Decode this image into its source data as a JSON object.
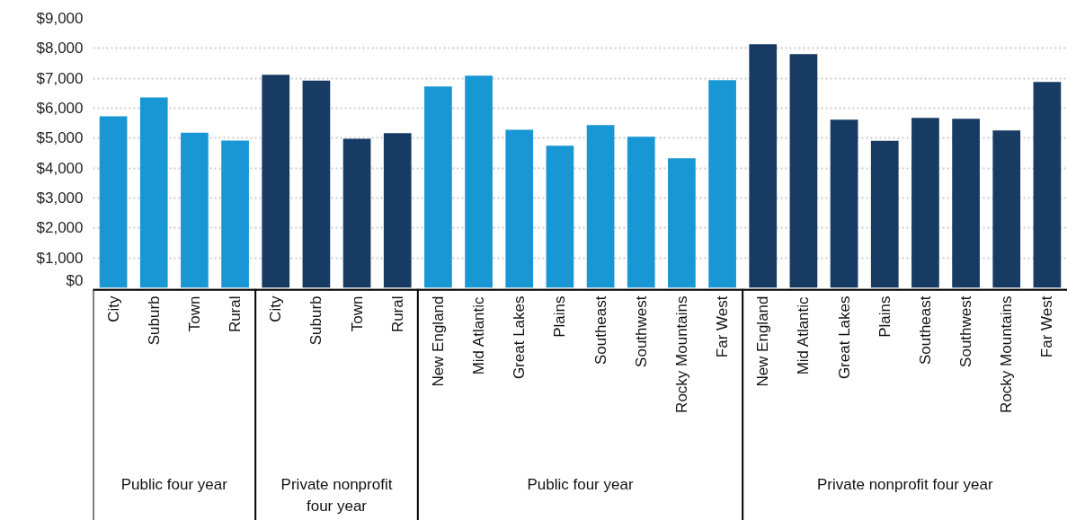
{
  "chart_data": {
    "type": "bar",
    "categories": [
      "City",
      "Suburb",
      "Town",
      "Rural",
      "City",
      "Suburb",
      "Town",
      "Rural",
      "New England",
      "Mid Atlantic",
      "Great Lakes",
      "Plains",
      "Southeast",
      "Southwest",
      "Rocky Mountains",
      "Far West",
      "New England",
      "Mid Atlantic",
      "Great Lakes",
      "Plains",
      "Southeast",
      "Southwest",
      "Rocky Mountains",
      "Far West"
    ],
    "values": [
      5730,
      6360,
      5180,
      4920,
      7120,
      6920,
      4980,
      5170,
      6730,
      7090,
      5280,
      4750,
      5440,
      5050,
      4330,
      6940,
      8140,
      7810,
      5620,
      4910,
      5680,
      5650,
      5260,
      6880
    ],
    "colors": [
      "#1997d4",
      "#1997d4",
      "#1997d4",
      "#1997d4",
      "#173b63",
      "#173b63",
      "#173b63",
      "#173b63",
      "#1997d4",
      "#1997d4",
      "#1997d4",
      "#1997d4",
      "#1997d4",
      "#1997d4",
      "#1997d4",
      "#1997d4",
      "#173b63",
      "#173b63",
      "#173b63",
      "#173b63",
      "#173b63",
      "#173b63",
      "#173b63",
      "#173b63"
    ],
    "annotations": [
      "Public four year",
      "Private nonprofit four year",
      "Public four year",
      "Private nonprofit four year"
    ],
    "ylim": [
      0,
      9000
    ],
    "yticks": [
      {
        "value": 0,
        "label": "$0"
      },
      {
        "value": 1000,
        "label": "$1,000"
      },
      {
        "value": 2000,
        "label": "$2,000"
      },
      {
        "value": 3000,
        "label": "$3,000"
      },
      {
        "value": 4000,
        "label": "$4,000"
      },
      {
        "value": 5000,
        "label": "$5,000"
      },
      {
        "value": 6000,
        "label": "$6,000"
      },
      {
        "value": 7000,
        "label": "$7,000"
      },
      {
        "value": 8000,
        "label": "$8,000"
      },
      {
        "value": 9000,
        "label": "$9,000"
      }
    ],
    "grid": "y"
  }
}
